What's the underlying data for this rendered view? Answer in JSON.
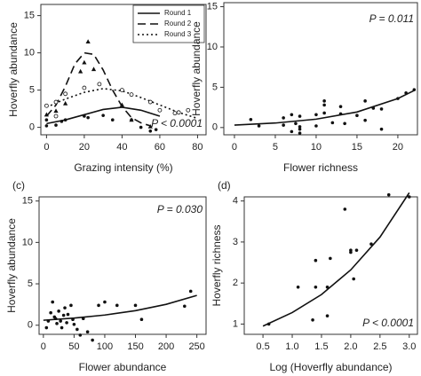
{
  "chart_data": [
    {
      "type": "scatter",
      "xlabel": "Grazing intensity (%)",
      "ylabel": "Hoverfly abundance",
      "annotation": "P < 0.0001",
      "xlim": [
        -3,
        84.5
      ],
      "ylim": [
        -1,
        16.5
      ],
      "xticks": [
        0,
        20,
        40,
        60,
        80
      ],
      "yticks": [
        0,
        5,
        10,
        15
      ],
      "legend": "upper right",
      "series": [
        {
          "name": "Round 1",
          "marker": "dot",
          "line_style": "solid",
          "color": "#111111",
          "x": [
            0,
            0,
            5,
            8,
            10,
            20,
            22,
            30,
            35,
            45,
            50,
            55,
            58
          ],
          "values": [
            0.2,
            1,
            0.3,
            0.8,
            1.0,
            1.5,
            1.3,
            1.6,
            1.0,
            1.0,
            0,
            -0.5,
            -0.3
          ],
          "fit_x": [
            0,
            10,
            20,
            30,
            40,
            50,
            60
          ],
          "fit_values": [
            0.5,
            1.0,
            1.7,
            2.4,
            2.7,
            2.3,
            1.5
          ]
        },
        {
          "name": "Round 2",
          "marker": "triangle",
          "line_style": "dashed",
          "color": "#111111",
          "x": [
            0,
            5,
            10,
            18,
            20,
            22,
            25,
            40,
            45,
            55
          ],
          "values": [
            1.7,
            2.2,
            3.2,
            7.5,
            8.7,
            11.5,
            7.8,
            3.0,
            1.0,
            0.1
          ],
          "fit_x": [
            0,
            5,
            10,
            15,
            20,
            25,
            30,
            35,
            40,
            45,
            50,
            55
          ],
          "fit_values": [
            1.5,
            3.0,
            5.5,
            8.5,
            10.0,
            9.8,
            7.7,
            5.0,
            2.8,
            1.3,
            0.6,
            0.2
          ]
        },
        {
          "name": "Round 3",
          "marker": "open-circle",
          "line_style": "dotted",
          "color": "#111111",
          "x": [
            0,
            5,
            5,
            10,
            20,
            28,
            40,
            45,
            55,
            60,
            68,
            70,
            75
          ],
          "values": [
            2.9,
            3.4,
            1.5,
            4.5,
            5.3,
            5.8,
            5.0,
            4.4,
            3.4,
            2.3,
            1.9,
            2.0,
            2.3
          ],
          "fit_x": [
            0,
            10,
            20,
            30,
            40,
            50,
            60,
            70,
            80
          ],
          "fit_values": [
            2.7,
            3.8,
            4.7,
            5.2,
            4.9,
            4.0,
            3.0,
            2.0,
            1.2
          ]
        }
      ]
    },
    {
      "type": "scatter",
      "xlabel": "Flower richness",
      "ylabel": "Hoverfly abundance",
      "annotation": "P = 0.011",
      "xlim": [
        -1.3,
        22.4
      ],
      "ylim": [
        -0.9,
        15.5
      ],
      "xticks": [
        0,
        5,
        10,
        15,
        20
      ],
      "yticks": [
        0,
        5,
        10,
        15
      ],
      "series": [
        {
          "marker": "dot",
          "line_style": "solid",
          "color": "#111111",
          "x": [
            2,
            3,
            6,
            6,
            7,
            7,
            7.5,
            8,
            8,
            8,
            8,
            10,
            10,
            11,
            11,
            11,
            12,
            13,
            13,
            13.5,
            15,
            16,
            16,
            17,
            18,
            18,
            20,
            21,
            22
          ],
          "values": [
            1,
            0.2,
            1.2,
            0.3,
            -0.5,
            1.6,
            0.5,
            -0.7,
            -0.2,
            0.1,
            1.4,
            0.2,
            1.6,
            1.8,
            2.8,
            3.3,
            0.6,
            1.7,
            2.6,
            0.5,
            1.5,
            3.3,
            0.9,
            2.4,
            2.3,
            -0.2,
            3.6,
            4.3,
            4.7
          ],
          "fit_x": [
            0,
            5,
            10,
            15,
            20,
            22
          ],
          "fit_values": [
            0.3,
            0.56,
            1.04,
            1.93,
            3.6,
            4.6
          ]
        }
      ]
    },
    {
      "type": "scatter",
      "panel_label": "(c)",
      "xlabel": "Flower abundance",
      "ylabel": "Hoverfly abundance",
      "annotation": "P = 0.030",
      "xlim": [
        -7,
        265
      ],
      "ylim": [
        -1.1,
        15.5
      ],
      "xticks": [
        0,
        50,
        100,
        150,
        200,
        250
      ],
      "yticks": [
        0,
        5,
        10,
        15
      ],
      "series": [
        {
          "marker": "dot",
          "line_style": "solid",
          "color": "#111111",
          "x": [
            5,
            8,
            12,
            15,
            18,
            20,
            22,
            25,
            28,
            30,
            33,
            35,
            38,
            40,
            45,
            48,
            50,
            55,
            60,
            65,
            72,
            80,
            90,
            100,
            120,
            150,
            160,
            230,
            240
          ],
          "values": [
            -0.3,
            0.5,
            1.5,
            2.8,
            1,
            0.8,
            0.2,
            1.7,
            0.5,
            -0.3,
            1.2,
            2.1,
            0.3,
            1.3,
            2.4,
            0.7,
            0.1,
            -0.5,
            -1.2,
            0.8,
            -0.8,
            -1.8,
            2.4,
            2.8,
            2.4,
            2.4,
            0.7,
            2.3,
            4.1
          ],
          "fit_x": [
            0,
            50,
            100,
            150,
            200,
            250
          ],
          "fit_values": [
            0.6,
            0.86,
            1.23,
            1.76,
            2.52,
            3.6
          ]
        }
      ]
    },
    {
      "type": "scatter",
      "panel_label": "(d)",
      "xlabel": "Log (Hoverfly abundance)",
      "ylabel": "Hoverfly richness",
      "annotation": "P < 0.0001",
      "xlim": [
        0.18,
        3.14
      ],
      "ylim": [
        0.75,
        4.1
      ],
      "xticks": [
        0.5,
        {
          "value": 1,
          "label": "1.0"
        },
        1.5,
        {
          "value": 2,
          "label": "2.0"
        },
        2.5,
        {
          "value": 3,
          "label": "3.0"
        }
      ],
      "yticks": [
        1,
        2,
        3,
        4
      ],
      "series": [
        {
          "marker": "dot",
          "line_style": "solid",
          "color": "#111111",
          "x": [
            0.6,
            1.1,
            1.35,
            1.4,
            1.4,
            1.6,
            1.6,
            1.65,
            1.9,
            2.0,
            2.0,
            2.05,
            2.1,
            2.35,
            2.65,
            3.0
          ],
          "values": [
            1.0,
            1.9,
            1.1,
            1.9,
            2.55,
            1.2,
            1.9,
            2.6,
            3.8,
            2.75,
            2.8,
            2.1,
            2.8,
            2.95,
            4.15,
            4.1
          ],
          "fit_x": [
            0.5,
            1,
            1.5,
            2,
            2.5,
            3
          ],
          "fit_values": [
            0.95,
            1.28,
            1.72,
            2.32,
            3.12,
            4.2
          ]
        }
      ]
    }
  ]
}
